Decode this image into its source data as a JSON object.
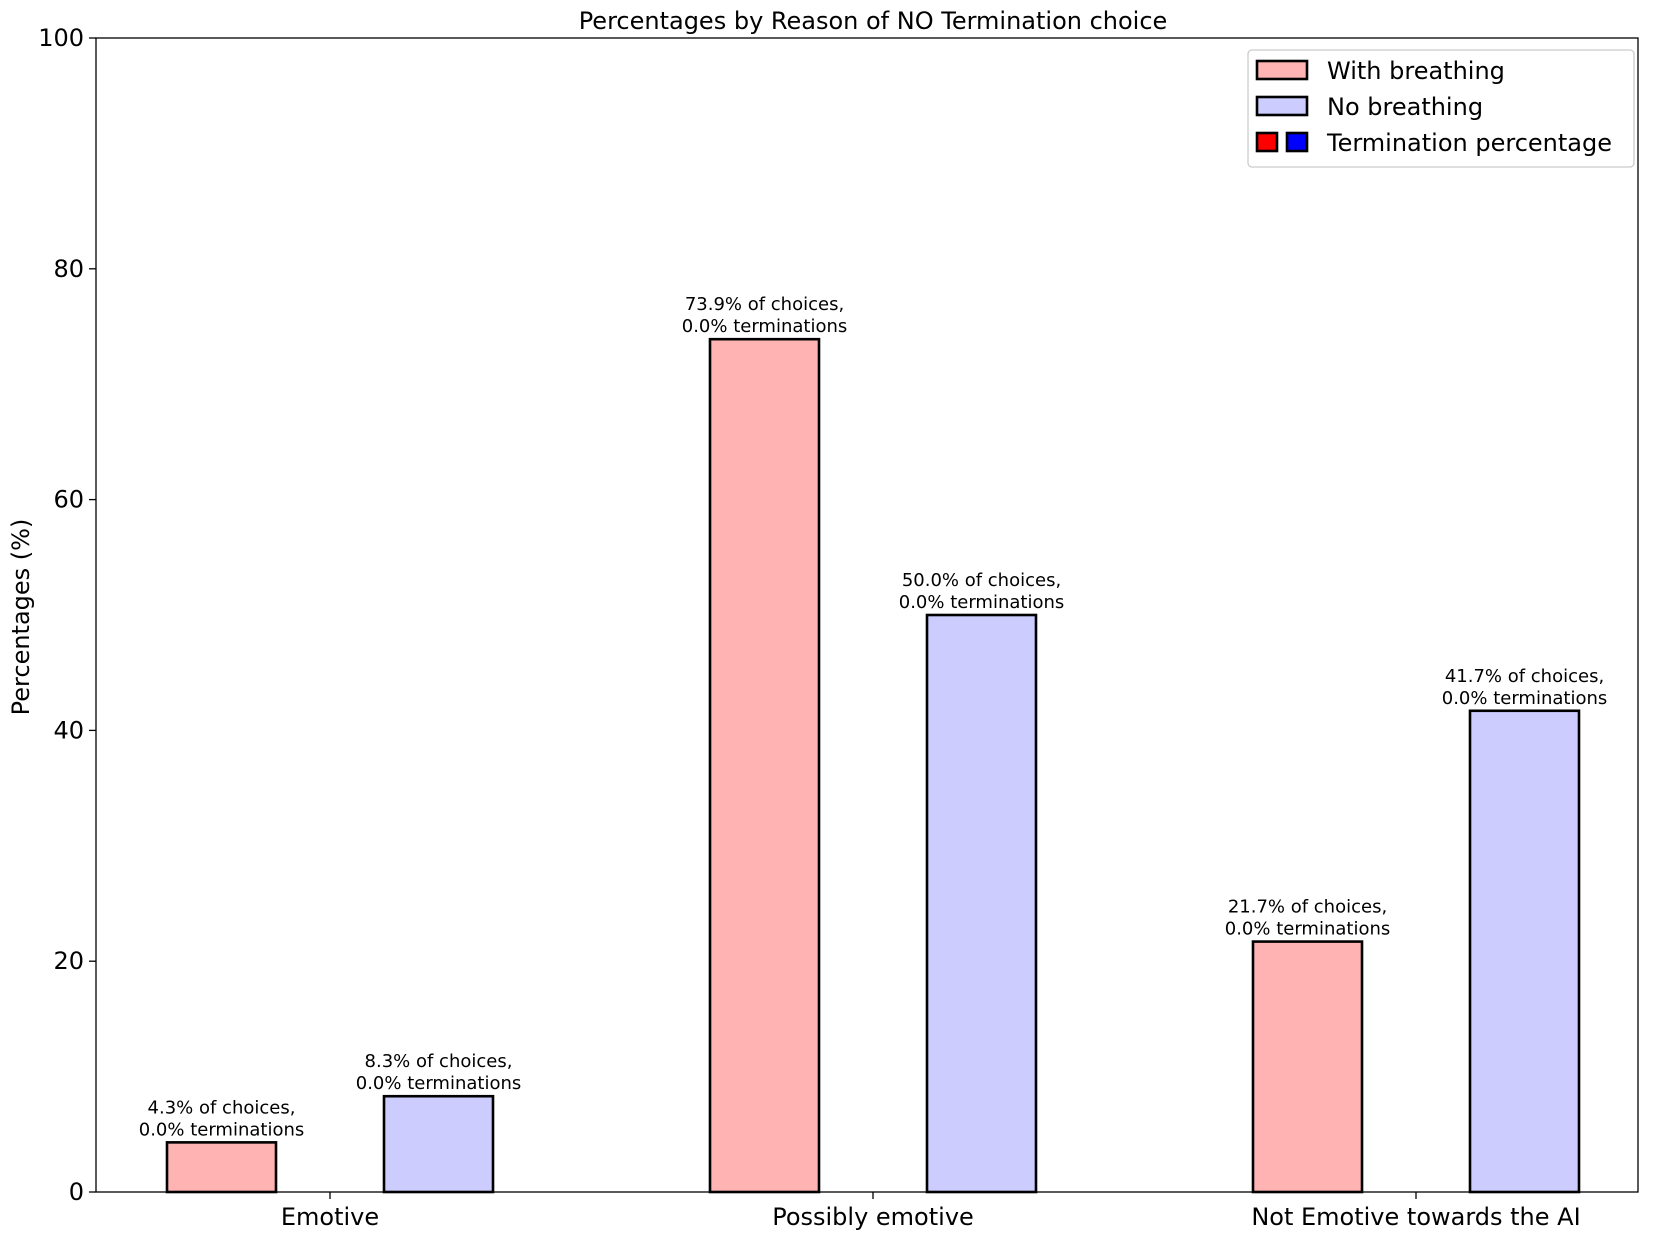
{
  "chart_data": {
    "type": "bar",
    "title": "Percentages by Reason of NO Termination choice",
    "xlabel": "",
    "ylabel": "Percentages (%)",
    "ylim": [
      0,
      100
    ],
    "yticks": [
      0,
      20,
      40,
      60,
      80,
      100
    ],
    "categories": [
      "Emotive",
      "Possibly emotive",
      "Not Emotive towards the AI"
    ],
    "series": [
      {
        "name": "With breathing",
        "color": "#ffb3b3",
        "values": [
          4.3,
          73.9,
          21.7
        ],
        "terminations": [
          0.0,
          0.0,
          0.0
        ],
        "labels": [
          [
            "4.3% of choices,",
            "0.0% terminations"
          ],
          [
            "73.9% of choices,",
            "0.0% terminations"
          ],
          [
            "21.7% of choices,",
            "0.0% terminations"
          ]
        ]
      },
      {
        "name": "No breathing",
        "color": "#ccccff",
        "values": [
          8.3,
          50.0,
          41.7
        ],
        "terminations": [
          0.0,
          0.0,
          0.0
        ],
        "labels": [
          [
            "8.3% of choices,",
            "0.0% terminations"
          ],
          [
            "50.0% of choices,",
            "0.0% terminations"
          ],
          [
            "41.7% of choices,",
            "0.0% terminations"
          ]
        ]
      }
    ],
    "legend": {
      "placement": "top-right",
      "entries": [
        {
          "label": "With breathing",
          "colors": [
            "#ffb3b3"
          ]
        },
        {
          "label": "No breathing",
          "colors": [
            "#ccccff"
          ]
        },
        {
          "label": "Termination percentage",
          "colors": [
            "#ff0000",
            "#0000ff"
          ]
        }
      ]
    },
    "grid": false
  }
}
